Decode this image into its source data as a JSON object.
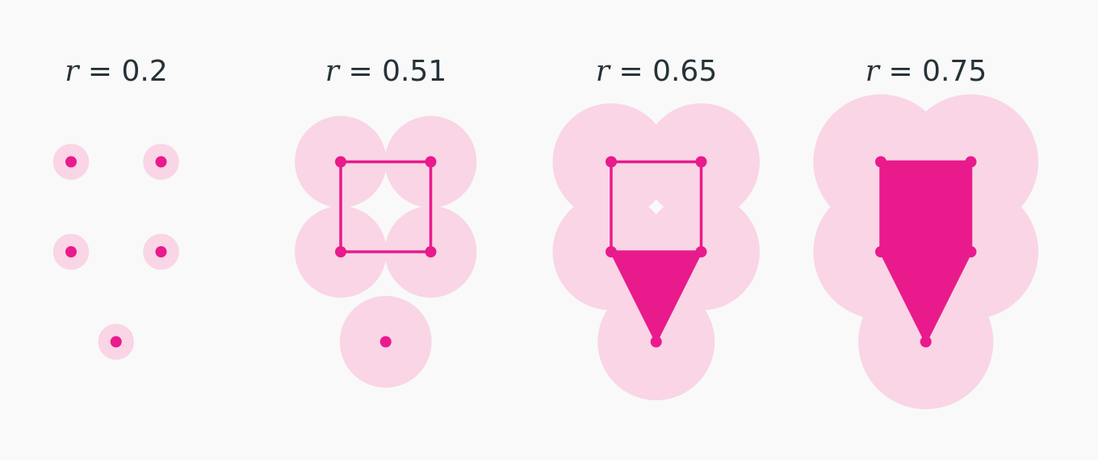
{
  "colors": {
    "background": "#f9f9f9",
    "ball": "#f9d5e5",
    "simplex": "#e91a8c",
    "title": "#263238"
  },
  "panels": [
    {
      "var": "r",
      "eq": "=",
      "value": "0.2",
      "r": 0.2,
      "edges": [],
      "triangles": []
    },
    {
      "var": "r",
      "eq": "=",
      "value": "0.51",
      "r": 0.51,
      "edges": [
        [
          0,
          1
        ],
        [
          1,
          3
        ],
        [
          3,
          2
        ],
        [
          2,
          0
        ]
      ],
      "triangles": []
    },
    {
      "var": "r",
      "eq": "=",
      "value": "0.65",
      "r": 0.65,
      "edges": [
        [
          0,
          1
        ],
        [
          1,
          3
        ],
        [
          3,
          2
        ],
        [
          2,
          0
        ]
      ],
      "triangles": [
        [
          2,
          3,
          4
        ]
      ]
    },
    {
      "var": "r",
      "eq": "=",
      "value": "0.75",
      "r": 0.75,
      "edges": [
        [
          0,
          1
        ],
        [
          1,
          3
        ],
        [
          3,
          2
        ],
        [
          2,
          0
        ],
        [
          2,
          4
        ],
        [
          3,
          4
        ]
      ],
      "triangles": [
        [
          0,
          1,
          3
        ],
        [
          0,
          2,
          3
        ],
        [
          2,
          3,
          4
        ]
      ]
    }
  ],
  "points": [
    {
      "x": 0,
      "y": 1
    },
    {
      "x": 1,
      "y": 1
    },
    {
      "x": 0,
      "y": 0
    },
    {
      "x": 1,
      "y": 0
    },
    {
      "x": 0.5,
      "y": -1
    }
  ]
}
